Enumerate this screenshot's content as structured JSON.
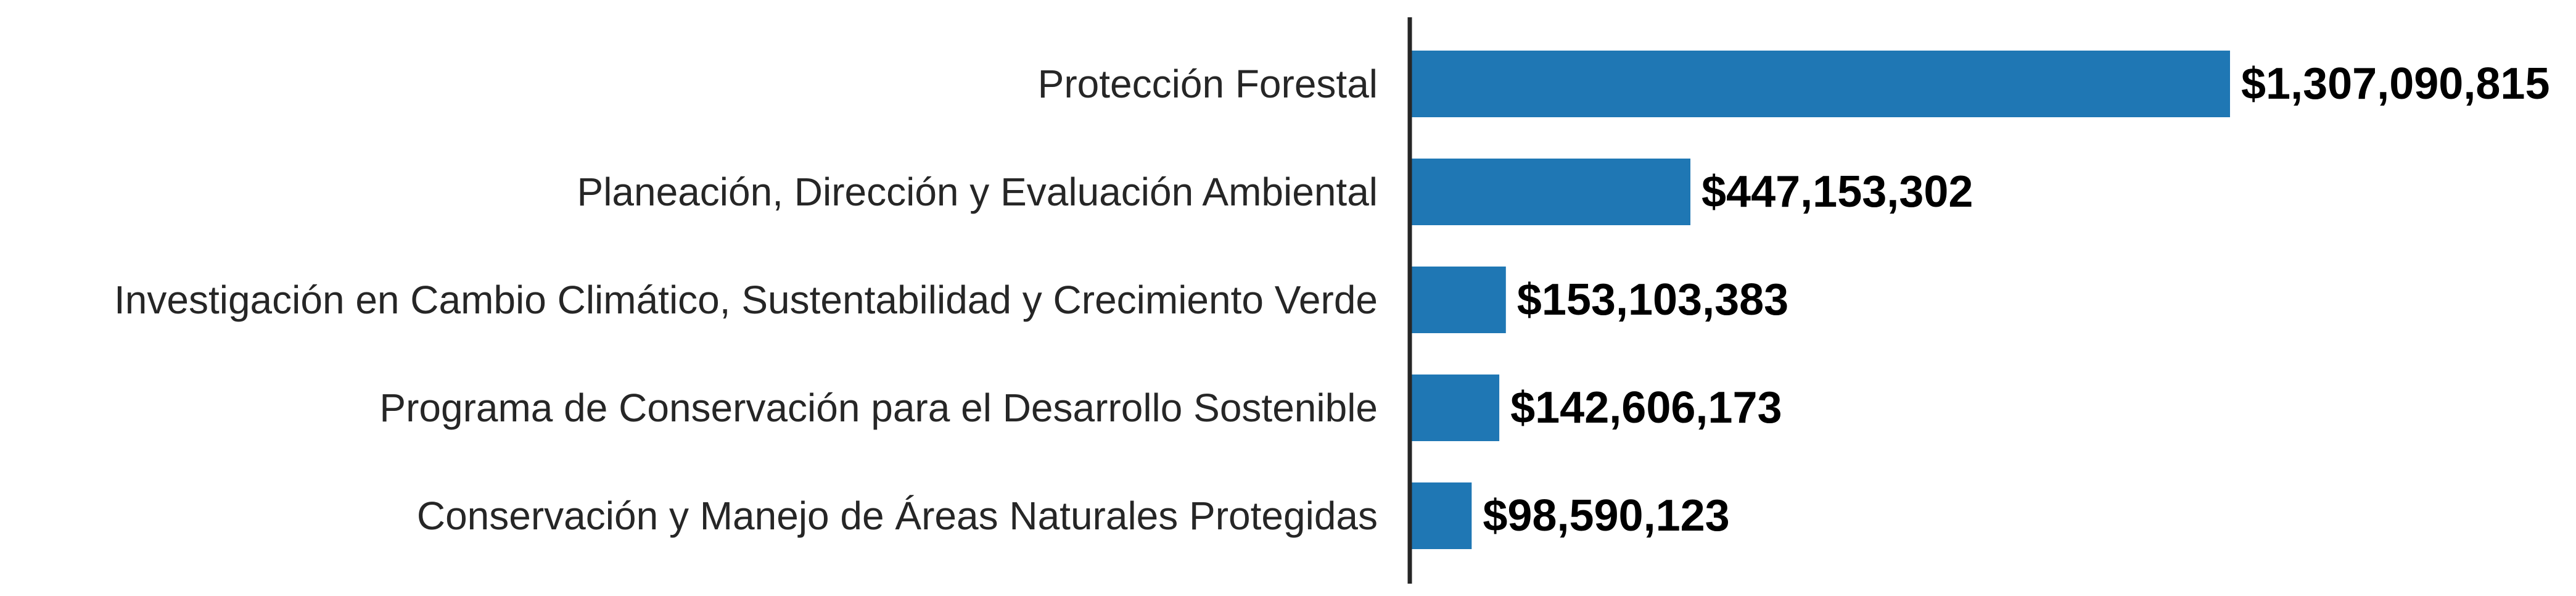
{
  "chart_data": {
    "type": "bar",
    "orientation": "horizontal",
    "categories": [
      "Protección Forestal",
      "Planeación, Dirección y Evaluación Ambiental",
      "Investigación en Cambio Climático, Sustentabilidad y Crecimiento Verde",
      "Programa de Conservación para el Desarrollo Sostenible",
      "Conservación y Manejo de Áreas Naturales Protegidas"
    ],
    "values": [
      1307090815,
      447153302,
      153103383,
      142606173,
      98590123
    ],
    "value_labels": [
      "$1,307,090,815",
      "$447,153,302",
      "$153,103,383",
      "$142,606,173",
      "$98,590,123"
    ],
    "bar_color": "#1f77b4",
    "xlim": [
      0,
      1307090815
    ],
    "grid": false,
    "legend": "none"
  }
}
